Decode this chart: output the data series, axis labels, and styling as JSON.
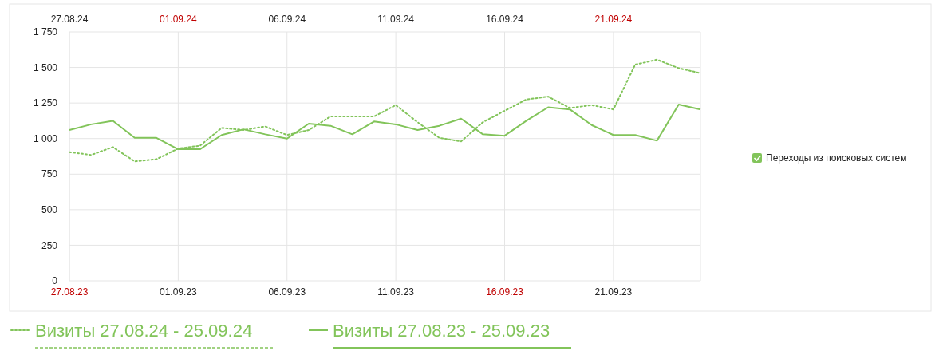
{
  "chart_data": {
    "type": "line",
    "legend_title": "Переходы из поисковых систем",
    "x": [
      "--08-27",
      "--08-28",
      "--08-29",
      "--08-30",
      "--08-31",
      "--09-01",
      "--09-02",
      "--09-03",
      "--09-04",
      "--09-05",
      "--09-06",
      "--09-07",
      "--09-08",
      "--09-09",
      "--09-10",
      "--09-11",
      "--09-12",
      "--09-13",
      "--09-14",
      "--09-15",
      "--09-16",
      "--09-17",
      "--09-18",
      "--09-19",
      "--09-20",
      "--09-21",
      "--09-22",
      "--09-23",
      "--09-24",
      "--09-25"
    ],
    "series": [
      {
        "name": "Визиты 27.08.24 - 25.09.24",
        "color": "#82c45a",
        "line_style": "dotted",
        "values": [
          905,
          885,
          940,
          840,
          855,
          930,
          950,
          1075,
          1060,
          1085,
          1025,
          1060,
          1155,
          1155,
          1155,
          1235,
          1115,
          1005,
          980,
          1115,
          1195,
          1275,
          1295,
          1215,
          1235,
          1205,
          1520,
          1555,
          1495,
          1460
        ]
      },
      {
        "name": "Визиты 27.08.23 - 25.09.23",
        "color": "#82c45a",
        "line_style": "solid",
        "values": [
          1060,
          1100,
          1125,
          1005,
          1005,
          925,
          925,
          1025,
          1065,
          1030,
          1000,
          1105,
          1090,
          1030,
          1120,
          1100,
          1060,
          1090,
          1140,
          1030,
          1020,
          1125,
          1220,
          1205,
          1095,
          1025,
          1025,
          985,
          1240,
          1205
        ]
      }
    ],
    "xlim": [
      "--08-27",
      "--09-25"
    ],
    "xticks": [
      {
        "value": "--08-27",
        "label": "27.08.23"
      },
      {
        "value": "--09-01",
        "label": "01.09.23"
      },
      {
        "value": "--09-06",
        "label": "06.09.23"
      },
      {
        "value": "--09-11",
        "label": "11.09.23"
      },
      {
        "value": "--09-16",
        "label": "16.09.23"
      },
      {
        "value": "--09-21",
        "label": "21.09.23"
      }
    ],
    "x2lim": [
      "--08-27",
      "--09-25"
    ],
    "x2ticks": [
      {
        "value": "--08-27",
        "label": "27.08.24"
      },
      {
        "value": "--09-01",
        "label": "01.09.24"
      },
      {
        "value": "--09-06",
        "label": "06.09.24"
      },
      {
        "value": "--09-11",
        "label": "11.09.24"
      },
      {
        "value": "--09-16",
        "label": "16.09.24"
      },
      {
        "value": "--09-21",
        "label": "21.09.24"
      }
    ],
    "ylim": [
      0,
      1750
    ],
    "yticks": [
      0,
      250,
      500,
      750,
      {
        "value": 1000,
        "label": "1 000"
      },
      {
        "value": 1250,
        "label": "1 250"
      },
      {
        "value": 1500,
        "label": "1 500"
      },
      {
        "value": 1750,
        "label": "1 750"
      }
    ],
    "grid": true,
    "legend": "bottom",
    "marker": "none"
  }
}
